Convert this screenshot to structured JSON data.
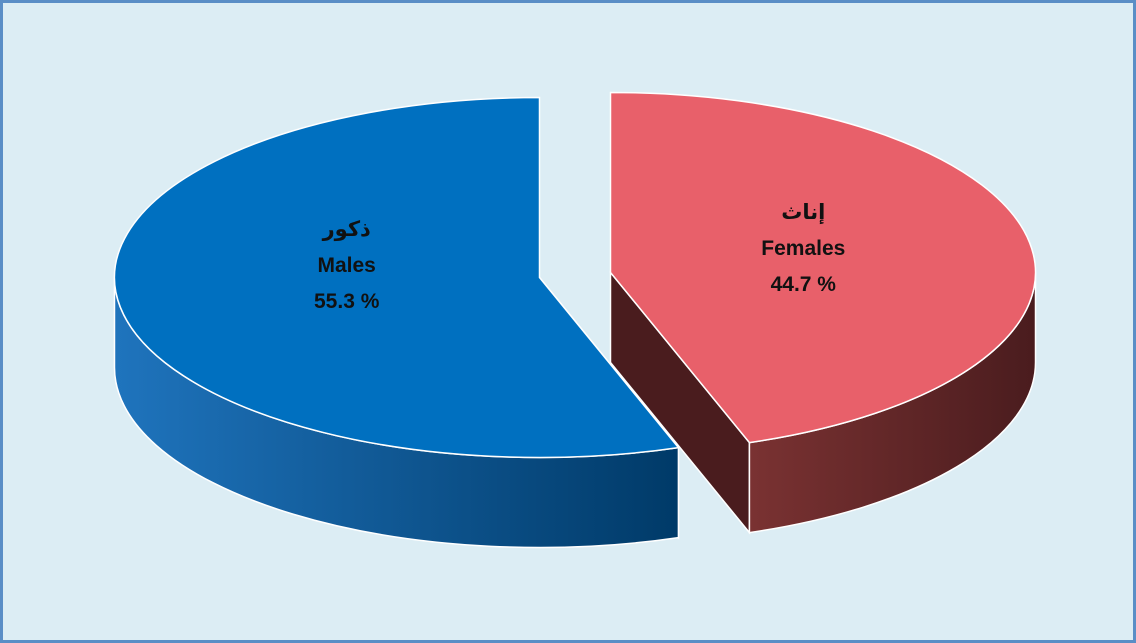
{
  "chart_data": {
    "type": "pie",
    "categories": [
      "Females",
      "Males"
    ],
    "arabic_labels": [
      "إناث",
      "ذكور"
    ],
    "values": [
      44.7,
      55.3
    ],
    "value_labels": [
      "44.7 %",
      "55.3 %"
    ],
    "colors": [
      "#e8606a",
      "#0070c0"
    ],
    "side_colors": [
      [
        "#7a3232",
        "#4a1c1e"
      ],
      [
        "#1f74bd",
        "#003a68"
      ]
    ],
    "start_angle": 0,
    "direction": "clockwise",
    "exploded": true
  }
}
